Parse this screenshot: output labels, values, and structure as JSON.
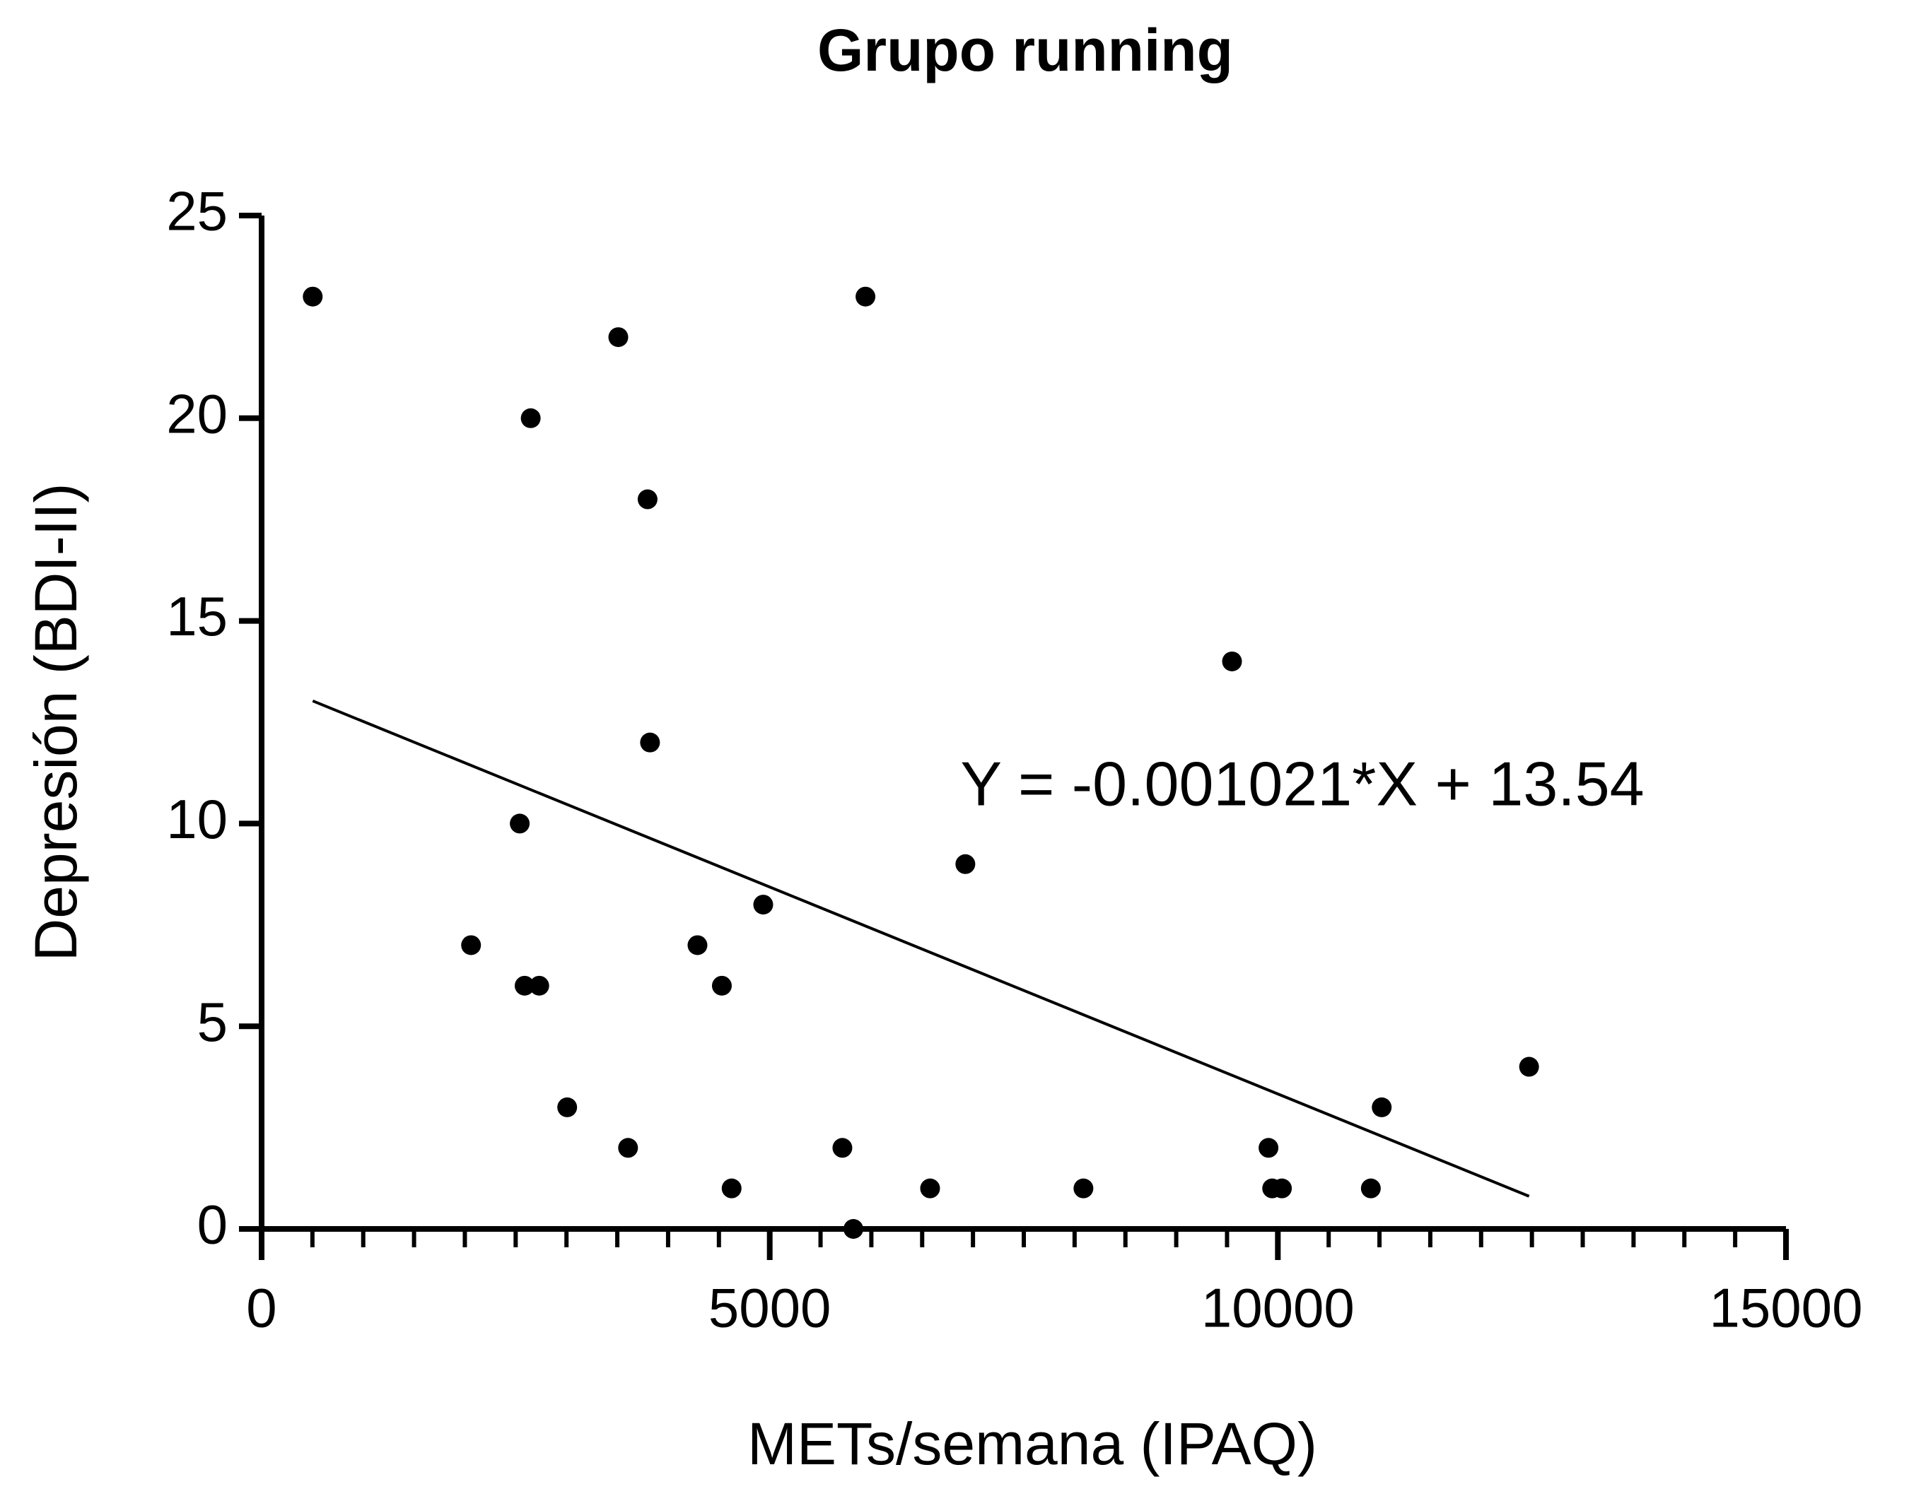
{
  "chart_data": {
    "type": "scatter",
    "title": "Grupo running",
    "x_label": "METs/semana (IPAQ)",
    "y_label": "Depresión  (BDI-II)",
    "annotation": "Y = -0.001021*X + 13.54",
    "fit": {
      "slope": -0.001021,
      "intercept": 13.54
    },
    "color": "#000000",
    "x": [
      503,
      3510,
      5942,
      2648,
      3798,
      9549,
      3822,
      2540,
      6925,
      4936,
      2061,
      4289,
      2588,
      2732,
      4529,
      12472,
      3007,
      11022,
      3606,
      5715,
      9908,
      4625,
      6578,
      8087,
      9944,
      10040,
      10915,
      5823
    ],
    "values": [
      23,
      22,
      23,
      20,
      18,
      14,
      12,
      10,
      9,
      8,
      7,
      7,
      6,
      6,
      6,
      4,
      3,
      3,
      2,
      2,
      2,
      1,
      1,
      1,
      1,
      1,
      1,
      0
    ],
    "xlim": [
      0,
      15000
    ],
    "ylim": [
      0,
      25
    ],
    "xticks": [
      0,
      5000,
      10000,
      15000
    ],
    "yticks": [
      0,
      5,
      10,
      15,
      20,
      25
    ]
  }
}
